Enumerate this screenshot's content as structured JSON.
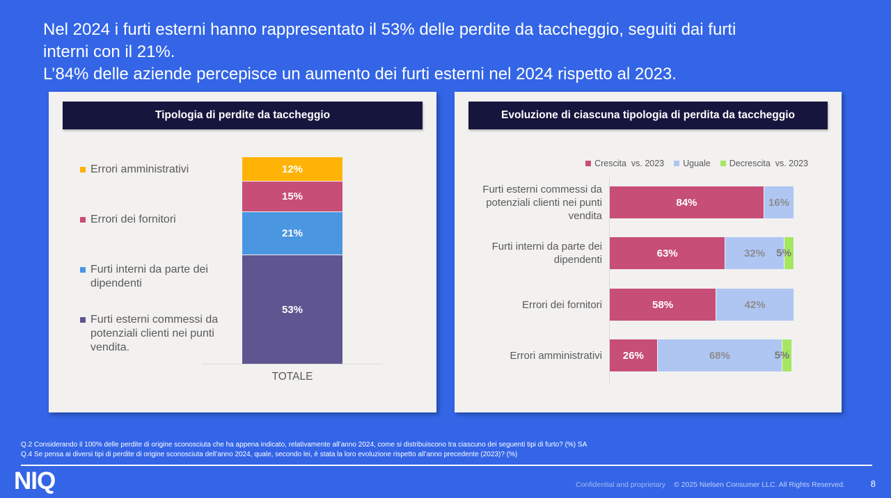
{
  "title": {
    "lines": [
      "Nel 2024 i furti esterni hanno rappresentato il 53% delle perdite da taccheggio, seguiti dai furti",
      "interni con il 21%.",
      "L’84% delle aziende percepisce un aumento dei furti esterni nel 2024 rispetto al 2023."
    ]
  },
  "colors": {
    "background": "#3365E6",
    "card": "#F2F1F0",
    "header_navy": "#15153D",
    "orange": "#FFB306",
    "pink": "#C74E76",
    "blue": "#4A96E1",
    "purple": "#5F5590",
    "light_blue": "#AFC6F3",
    "green": "#A5E763",
    "gray_text": "#595959"
  },
  "left_chart": {
    "header": "Tipologia di perdite da taccheggio",
    "axis_label": "TOTALE",
    "legend": [
      {
        "label": "Errori amministrativi",
        "color": "#FFB306"
      },
      {
        "label": "Errori dei fornitori",
        "color": "#C74E76"
      },
      {
        "label": "Furti interni da parte dei dipendenti",
        "color": "#4A96E1"
      },
      {
        "label": "Furti esterni commessi da potenziali clienti nei punti vendita.",
        "color": "#5F5590"
      }
    ],
    "segments": [
      {
        "label": "12%",
        "value": 12,
        "color": "#FFB306",
        "text_color": "#FFFFFF"
      },
      {
        "label": "15%",
        "value": 15,
        "color": "#C74E76",
        "text_color": "#FFFFFF"
      },
      {
        "label": "21%",
        "value": 21,
        "color": "#4A96E1",
        "text_color": "#FFFFFF"
      },
      {
        "label": "53%",
        "value": 53,
        "color": "#5F5590",
        "text_color": "#FFFFFF"
      }
    ]
  },
  "right_chart": {
    "header": "Evoluzione di ciascuna tipologia di perdita da taccheggio",
    "legend": [
      {
        "label": "Crescita  vs. 2023",
        "color": "#C74E76"
      },
      {
        "label": "Uguale",
        "color": "#AFC6F3"
      },
      {
        "label": "Decrescita  vs. 2023",
        "color": "#A5E763"
      }
    ],
    "seg_colors": {
      "crescita": "#C74E76",
      "uguale": "#AFC6F3",
      "decrescita": "#A5E763"
    },
    "seg_text_colors": {
      "crescita": "#FFFFFF",
      "uguale": "#8C8C8C",
      "decrescita": "#787878"
    },
    "rows": [
      {
        "category": "Furti esterni commessi da potenziali clienti nei punti vendita",
        "segments": [
          {
            "label": "84%",
            "value": 84,
            "type": "crescita"
          },
          {
            "label": "16%",
            "value": 16,
            "type": "uguale"
          }
        ]
      },
      {
        "category": "Furti interni da parte dei dipendenti",
        "segments": [
          {
            "label": "63%",
            "value": 63,
            "type": "crescita"
          },
          {
            "label": "32%",
            "value": 32,
            "type": "uguale"
          },
          {
            "label": "5%",
            "value": 5,
            "type": "decrescita"
          }
        ]
      },
      {
        "category": "Errori dei fornitori",
        "segments": [
          {
            "label": "58%",
            "value": 58,
            "type": "crescita"
          },
          {
            "label": "42%",
            "value": 42,
            "type": "uguale"
          }
        ]
      },
      {
        "category": "Errori amministrativi",
        "segments": [
          {
            "label": "26%",
            "value": 26,
            "type": "crescita"
          },
          {
            "label": "68%",
            "value": 68,
            "type": "uguale"
          },
          {
            "label": "5%",
            "value": 5,
            "type": "decrescita"
          }
        ]
      }
    ]
  },
  "footnotes": [
    "Q.2 Considerando il 100% delle perdite di origine sconosciuta che ha appena indicato, relativamente all’anno 2024, come si distribuiscono tra ciascuno dei seguenti tipi di furto? (%) SA",
    "Q.4 Se pensa ai diversi tipi di perdite di origine sconosciuta dell’anno 2024, quale, secondo lei, è stata la loro evoluzione rispetto all’anno precedente (2023)? (%)"
  ],
  "footer": {
    "logo": "NIQ",
    "confidential": "Confidential and proprietary",
    "copyright": "© 2025 Nielsen Consumer LLC. All Rights Reserved.",
    "page_number": "8"
  },
  "chart_data": [
    {
      "type": "bar",
      "stacked": true,
      "orientation": "vertical",
      "title": "Tipologia di perdite da taccheggio",
      "categories": [
        "TOTALE"
      ],
      "series": [
        {
          "name": "Errori amministrativi",
          "values": [
            12
          ]
        },
        {
          "name": "Errori dei fornitori",
          "values": [
            15
          ]
        },
        {
          "name": "Furti interni da parte dei dipendenti",
          "values": [
            21
          ]
        },
        {
          "name": "Furti esterni commessi da potenziali clienti nei punti vendita.",
          "values": [
            53
          ]
        }
      ],
      "unit": "%",
      "ylim": [
        0,
        101
      ],
      "legend_position": "left",
      "grid": false
    },
    {
      "type": "bar",
      "stacked": true,
      "orientation": "horizontal",
      "title": "Evoluzione di ciascuna tipologia di perdita da taccheggio",
      "categories": [
        "Furti esterni commessi da potenziali clienti nei punti vendita",
        "Furti interni da parte dei dipendenti",
        "Errori dei fornitori",
        "Errori amministrativi"
      ],
      "series": [
        {
          "name": "Crescita vs. 2023",
          "values": [
            84,
            63,
            58,
            26
          ]
        },
        {
          "name": "Uguale",
          "values": [
            16,
            32,
            42,
            68
          ]
        },
        {
          "name": "Decrescita vs. 2023",
          "values": [
            0,
            5,
            0,
            5
          ]
        }
      ],
      "unit": "%",
      "xlim": [
        0,
        100
      ],
      "legend_position": "top",
      "grid": false
    }
  ]
}
